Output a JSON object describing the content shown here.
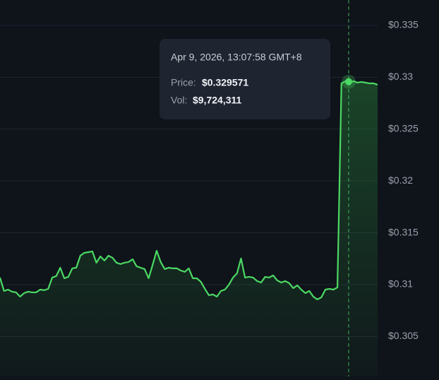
{
  "chart_data": {
    "type": "line",
    "values": [
      0.31068,
      0.30939,
      0.30952,
      0.30932,
      0.30925,
      0.30884,
      0.30918,
      0.30932,
      0.30925,
      0.30925,
      0.30952,
      0.30946,
      0.30959,
      0.31068,
      0.31082,
      0.31163,
      0.31061,
      0.31075,
      0.31157,
      0.31163,
      0.31279,
      0.31307,
      0.31313,
      0.3132,
      0.31211,
      0.31272,
      0.31232,
      0.31279,
      0.31259,
      0.31211,
      0.31198,
      0.31211,
      0.31218,
      0.31245,
      0.31177,
      0.31163,
      0.3115,
      0.31061,
      0.31191,
      0.31327,
      0.31218,
      0.3115,
      0.31163,
      0.31157,
      0.31157,
      0.31136,
      0.31123,
      0.31157,
      0.31061,
      0.31061,
      0.31027,
      0.30959,
      0.30898,
      0.30905,
      0.30884,
      0.30939,
      0.30952,
      0.31,
      0.31068,
      0.31109,
      0.31252,
      0.31068,
      0.31075,
      0.31068,
      0.31034,
      0.3102,
      0.31075,
      0.31068,
      0.31089,
      0.31041,
      0.3102,
      0.31034,
      0.31014,
      0.30966,
      0.30993,
      0.30952,
      0.30918,
      0.30939,
      0.30884,
      0.30857,
      0.30877,
      0.30952,
      0.30959,
      0.30952,
      0.30973,
      0.32941,
      0.32962,
      0.32948,
      0.32962,
      0.32948,
      0.32955,
      0.32948,
      0.32941,
      0.32941,
      0.32928
    ],
    "color": "#4bd863",
    "ylim": [
      0.30114,
      0.33745
    ],
    "yticks": [
      {
        "value": 0.305,
        "label": "$0.305"
      },
      {
        "value": 0.31,
        "label": "$0.31"
      },
      {
        "value": 0.315,
        "label": "$0.315"
      },
      {
        "value": 0.32,
        "label": "$0.32"
      },
      {
        "value": 0.325,
        "label": "$0.325"
      },
      {
        "value": 0.33,
        "label": "$0.33"
      },
      {
        "value": 0.335,
        "label": "$0.335"
      }
    ],
    "grid": true,
    "tooltip": {
      "title": "Apr 9, 2026, 13:07:58 GMT+8",
      "price_label": "Price:",
      "price": {
        "value": 0.329571,
        "label": "$0.329571"
      },
      "vol_label": "Vol:",
      "vol": "$9,724,311"
    }
  }
}
